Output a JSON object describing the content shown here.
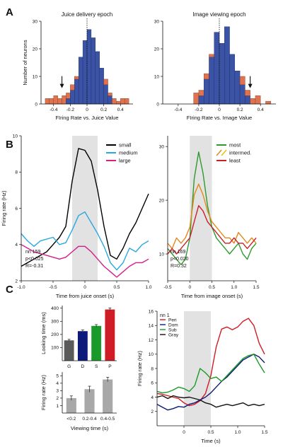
{
  "panel_labels": [
    "A",
    "B",
    "C"
  ],
  "chart_data": [
    {
      "id": "A_left",
      "type": "bar",
      "title": "Juice delivery epoch",
      "xlabel": "FIring Rate vs. Juice Value",
      "ylabel": "Number of neurons",
      "xlim": [
        -0.55,
        0.55
      ],
      "ylim": [
        0,
        30
      ],
      "xticks": [
        -0.4,
        -0.2,
        0,
        0.2,
        0.4
      ],
      "xtick_labels": [
        "-0.4",
        "-0.2",
        "0",
        "0.2",
        "0.4"
      ],
      "yticks": [
        0,
        10,
        20,
        30
      ],
      "ytick_labels": [
        "0",
        "10",
        "20",
        "30"
      ],
      "bin_starts": [
        -0.5,
        -0.45,
        -0.4,
        -0.35,
        -0.3,
        -0.25,
        -0.2,
        -0.15,
        -0.1,
        -0.05,
        0,
        0.05,
        0.1,
        0.15,
        0.2,
        0.25,
        0.3,
        0.35,
        0.4,
        0.45
      ],
      "bin_width": 0.05,
      "blue": [
        0,
        0,
        0,
        0,
        0,
        2,
        5,
        9,
        17,
        23,
        27,
        24,
        19,
        13,
        7,
        3,
        0,
        0,
        0,
        0
      ],
      "orange": [
        2,
        2,
        3,
        2,
        3,
        2,
        2,
        1,
        0,
        0,
        0,
        0,
        0,
        0,
        2,
        1,
        2,
        1,
        2,
        2
      ],
      "arrow_x": -0.3,
      "dashed_x": 0
    },
    {
      "id": "A_right",
      "type": "bar",
      "title": "Image viewing epoch",
      "xlabel": "FIring Rate vs. Image Value",
      "ylabel": "",
      "xlim": [
        -0.55,
        0.55
      ],
      "ylim": [
        0,
        30
      ],
      "xticks": [
        -0.4,
        -0.2,
        0,
        0.2,
        0.4
      ],
      "xtick_labels": [
        "-0.4",
        "-0.2",
        "0",
        "0.2",
        "0.4"
      ],
      "yticks": [
        0,
        10,
        20,
        30
      ],
      "ytick_labels": [
        "0",
        "10",
        "20",
        "30"
      ],
      "bin_starts": [
        -0.5,
        -0.45,
        -0.4,
        -0.35,
        -0.3,
        -0.25,
        -0.2,
        -0.15,
        -0.1,
        -0.05,
        0,
        0.05,
        0.1,
        0.15,
        0.2,
        0.25,
        0.3,
        0.35,
        0.4,
        0.45
      ],
      "bin_width": 0.05,
      "blue": [
        0,
        0,
        0,
        0,
        0,
        0,
        3,
        9,
        17,
        26,
        22,
        28,
        18,
        12,
        7,
        3,
        0,
        0,
        0,
        0
      ],
      "orange": [
        0,
        0,
        0,
        0,
        0,
        4,
        2,
        2,
        1,
        0,
        0,
        0,
        0,
        0,
        3,
        2,
        2,
        3,
        0,
        1
      ],
      "arrow_x": 0.3,
      "dashed_x": 0
    },
    {
      "id": "B_left",
      "type": "line",
      "xlabel": "Time from juice onset (s)",
      "ylabel": "Firing rate (Hz)",
      "xlim": [
        -1.0,
        1.0
      ],
      "ylim": [
        2,
        10
      ],
      "xticks": [
        -1.0,
        -0.5,
        0,
        0.5,
        1.0
      ],
      "xtick_labels": [
        "-1.0",
        "-0.5",
        "0",
        "0.5",
        "1.0"
      ],
      "yticks": [
        2,
        4,
        6,
        8,
        10
      ],
      "ytick_labels": [
        "2",
        "4",
        "6",
        "8",
        "10"
      ],
      "shade": [
        -0.2,
        0.2
      ],
      "x": [
        -1.0,
        -0.9,
        -0.8,
        -0.7,
        -0.6,
        -0.5,
        -0.4,
        -0.3,
        -0.2,
        -0.1,
        0.0,
        0.1,
        0.2,
        0.3,
        0.4,
        0.5,
        0.6,
        0.7,
        0.8,
        0.9,
        1.0
      ],
      "series": [
        {
          "name": "small",
          "color": "#000000",
          "values": [
            2.8,
            3.0,
            3.2,
            3.4,
            3.6,
            4.0,
            4.4,
            5.0,
            7.5,
            9.3,
            9.2,
            8.6,
            7.0,
            5.0,
            3.4,
            3.2,
            3.8,
            4.6,
            5.2,
            6.0,
            6.8
          ]
        },
        {
          "name": "medium",
          "color": "#2aa8e0",
          "values": [
            4.6,
            4.2,
            3.9,
            4.2,
            4.3,
            4.4,
            4.0,
            4.1,
            4.8,
            5.6,
            5.8,
            5.2,
            4.6,
            3.9,
            3.0,
            2.6,
            3.0,
            3.8,
            3.6,
            4.0,
            4.2
          ]
        },
        {
          "name": "large",
          "color": "#d21f8a",
          "values": [
            4.0,
            3.8,
            3.6,
            3.5,
            3.4,
            3.3,
            3.2,
            3.3,
            3.6,
            3.9,
            3.9,
            3.6,
            3.2,
            2.8,
            2.5,
            2.2,
            2.5,
            2.8,
            3.0,
            3.0,
            3.2
          ]
        }
      ],
      "annotations": [
        "nn 159",
        "p<0.025",
        "R=-0.31"
      ]
    },
    {
      "id": "B_right",
      "type": "line",
      "xlabel": "Time from image onset (s)",
      "ylabel": "",
      "xlim": [
        -0.5,
        1.5
      ],
      "ylim": [
        5,
        32
      ],
      "xticks": [
        -0.5,
        0,
        0.5,
        1.0,
        1.5
      ],
      "xtick_labels": [
        "-0.5",
        "0",
        "0.5",
        "1.0",
        "1.5"
      ],
      "yticks": [
        10,
        20,
        30
      ],
      "ytick_labels": [
        "10",
        "20",
        "30"
      ],
      "shade": [
        0,
        0.5
      ],
      "x": [
        -0.5,
        -0.4,
        -0.3,
        -0.2,
        -0.1,
        0.0,
        0.1,
        0.2,
        0.3,
        0.4,
        0.5,
        0.6,
        0.7,
        0.8,
        0.9,
        1.0,
        1.1,
        1.2,
        1.3,
        1.4,
        1.5
      ],
      "series": [
        {
          "name": "most",
          "color": "#2e9a2e",
          "values": [
            11,
            10,
            9,
            8,
            9,
            13,
            24,
            29,
            25,
            19,
            15,
            13,
            12,
            11,
            10,
            11,
            12,
            10,
            9,
            11,
            12
          ]
        },
        {
          "name": "intermed.",
          "color": "#e08a1a",
          "values": [
            12,
            11,
            13,
            12,
            13,
            15,
            21,
            23,
            21,
            18,
            16,
            15,
            14,
            13,
            13,
            12,
            14,
            13,
            12,
            13,
            12
          ]
        },
        {
          "name": "least",
          "color": "#cc1f2a",
          "values": [
            10,
            11,
            10,
            11,
            12,
            13,
            16,
            19,
            18,
            16,
            15,
            14,
            13,
            12,
            12,
            13,
            12,
            12,
            11,
            12,
            13
          ]
        }
      ],
      "legend_dash_color": "#e8c000",
      "annotations": [
        "nn 169",
        "p<0.020",
        "R=0.32"
      ]
    },
    {
      "id": "C_top",
      "type": "bar",
      "ylabel": "Looking time (ms)",
      "ylim": [
        0,
        420
      ],
      "yticks": [
        100,
        200,
        300,
        400
      ],
      "ytick_labels": [
        "100",
        "200",
        "300",
        "400"
      ],
      "categories": [
        "G",
        "D",
        "S",
        "P"
      ],
      "values": [
        155,
        225,
        265,
        390
      ],
      "errors": [
        8,
        10,
        10,
        12
      ],
      "colors": [
        "#5a5a5a",
        "#0d1a7a",
        "#1a9a2a",
        "#d01c24"
      ]
    },
    {
      "id": "C_bottom",
      "type": "bar",
      "ylabel": "Firing rate (Hz)",
      "xlabel": "Viewing time (s)",
      "ylim": [
        0,
        5.5
      ],
      "yticks": [
        1,
        2,
        3,
        4,
        5
      ],
      "ytick_labels": [
        "1",
        "2",
        "3",
        "4",
        "5"
      ],
      "categories": [
        "<0.2",
        "0.2-0.4",
        "0.4-0.5"
      ],
      "values": [
        2.0,
        3.2,
        4.5
      ],
      "errors": [
        0.3,
        0.4,
        0.3
      ],
      "colors": [
        "#a8a8a8",
        "#a8a8a8",
        "#a8a8a8"
      ]
    },
    {
      "id": "C_right",
      "type": "line",
      "xlabel": "Time (s)",
      "ylabel": "Firing rate (Hz)",
      "xlim": [
        -0.5,
        1.5
      ],
      "ylim": [
        0,
        16
      ],
      "xticks": [
        0,
        0.5,
        1.0,
        1.5
      ],
      "xtick_labels": [
        "0",
        "0.5",
        "1.0",
        "1.5"
      ],
      "yticks": [
        2,
        4,
        6,
        8,
        10,
        12,
        14,
        16
      ],
      "ytick_labels": [
        "2",
        "4",
        "6",
        "8",
        "10",
        "12",
        "14",
        "16"
      ],
      "shade": [
        0,
        0.5
      ],
      "annotation": "nn 1",
      "x": [
        -0.5,
        -0.4,
        -0.3,
        -0.2,
        -0.1,
        0.0,
        0.1,
        0.2,
        0.3,
        0.4,
        0.5,
        0.6,
        0.7,
        0.8,
        0.9,
        1.0,
        1.1,
        1.2,
        1.3,
        1.4,
        1.5
      ],
      "series": [
        {
          "name": "Peri",
          "color": "#d01c24",
          "values": [
            4.5,
            4.4,
            4.2,
            4.0,
            3.8,
            3.2,
            2.8,
            3.0,
            3.5,
            4.5,
            7.0,
            11.0,
            13.5,
            13.8,
            13.4,
            13.8,
            14.6,
            15.0,
            14.0,
            11.5,
            10.0
          ]
        },
        {
          "name": "Dom",
          "color": "#0d1a7a",
          "values": [
            3.0,
            2.6,
            2.2,
            2.4,
            2.7,
            2.6,
            3.0,
            3.2,
            3.6,
            4.0,
            4.6,
            5.4,
            6.2,
            6.8,
            7.6,
            8.4,
            9.2,
            9.6,
            10.0,
            9.6,
            8.8
          ]
        },
        {
          "name": "Sub",
          "color": "#1a9a2a",
          "values": [
            4.8,
            4.6,
            4.7,
            5.0,
            5.4,
            5.2,
            4.8,
            5.6,
            8.0,
            7.4,
            6.6,
            6.8,
            6.2,
            7.0,
            7.8,
            8.6,
            9.4,
            9.8,
            10.0,
            8.6,
            7.4
          ]
        },
        {
          "name": "Gray",
          "color": "#111111",
          "values": [
            4.0,
            4.2,
            3.8,
            4.2,
            4.0,
            3.9,
            4.0,
            3.8,
            3.6,
            3.2,
            3.0,
            2.6,
            2.8,
            3.0,
            2.8,
            3.0,
            3.2,
            2.8,
            3.0,
            2.8,
            3.0
          ]
        }
      ]
    }
  ]
}
